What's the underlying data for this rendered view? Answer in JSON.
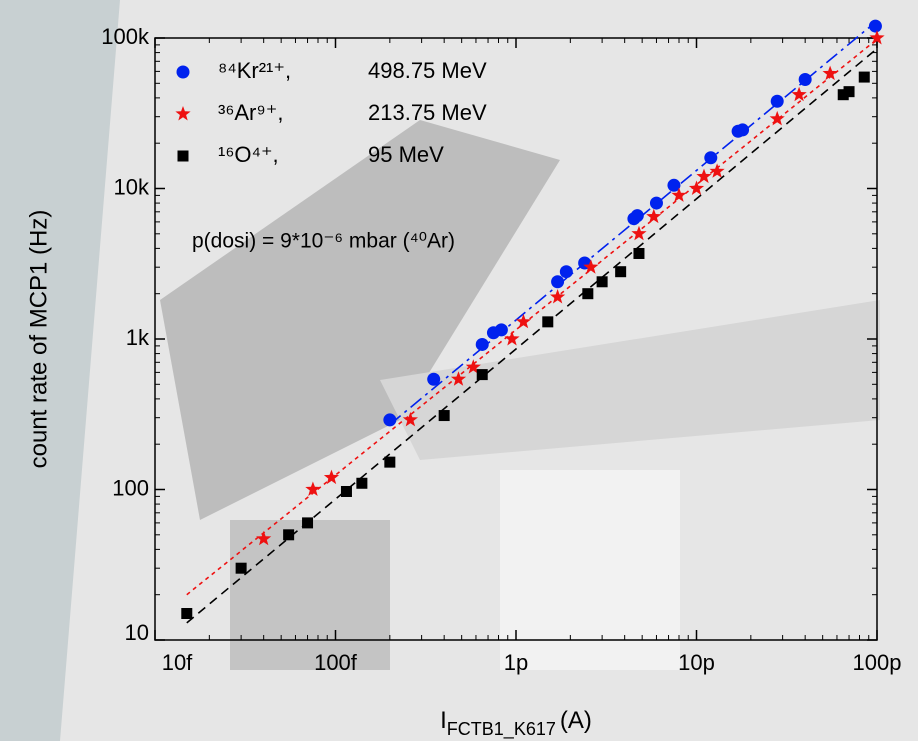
{
  "chart_data": {
    "type": "scatter",
    "xlabel": "I",
    "xlabel_sub": "FCTB1_K617",
    "xlabel_unit": "(A)",
    "ylabel": "count rate of  MCP1 (Hz)",
    "annotation": "p(dosi) = 9*10⁻⁶ mbar (⁴⁰Ar)",
    "xscale": "log",
    "yscale": "log",
    "xlim": [
      1e-14,
      1e-10
    ],
    "ylim": [
      10,
      100000
    ],
    "xticks": [
      {
        "value": 1e-14,
        "label": "10f"
      },
      {
        "value": 1e-13,
        "label": "100f"
      },
      {
        "value": 1e-12,
        "label": "1p"
      },
      {
        "value": 1e-11,
        "label": "10p"
      },
      {
        "value": 1e-10,
        "label": "100p"
      }
    ],
    "yticks": [
      10,
      100,
      {
        "value": 1000,
        "label": "1k"
      },
      {
        "value": 10000,
        "label": "10k"
      },
      {
        "value": 100000,
        "label": "100k"
      }
    ],
    "legend": "upper left",
    "series": [
      {
        "name": "⁸⁴Kr²¹⁺,",
        "energy": "498.75 MeV",
        "color": "#0022ee",
        "marker": "circle",
        "dash": "14 5 3 5",
        "x": [
          2e-13,
          3.5e-13,
          6.5e-13,
          7.5e-13,
          8.3e-13,
          1.7e-12,
          1.9e-12,
          2.4e-12,
          4.5e-12,
          4.7e-12,
          6e-12,
          7.5e-12,
          1.2e-11,
          1.7e-11,
          1.8e-11,
          2.8e-11,
          4e-11,
          9.8e-11
        ],
        "values": [
          290,
          540,
          920,
          1100,
          1150,
          2400,
          2800,
          3200,
          6300,
          6600,
          8000,
          10500,
          16000,
          24000,
          24500,
          38000,
          53000,
          120000
        ],
        "fit_x": [
          2e-13,
          1e-10
        ],
        "fit_y": [
          270,
          130000
        ]
      },
      {
        "name": "³⁶Ar⁹⁺,",
        "energy": "213.75 MeV",
        "color": "#ee1111",
        "marker": "star",
        "dash": "4 4",
        "x": [
          4e-14,
          7.5e-14,
          9.5e-14,
          2.6e-13,
          4.8e-13,
          5.8e-13,
          9.5e-13,
          1.1e-12,
          1.7e-12,
          2.6e-12,
          4.8e-12,
          5.8e-12,
          8e-12,
          1e-11,
          1.1e-11,
          1.3e-11,
          2.8e-11,
          3.7e-11,
          5.5e-11,
          1e-10
        ],
        "values": [
          47,
          100,
          120,
          290,
          540,
          650,
          1000,
          1300,
          1900,
          3000,
          5000,
          6500,
          9000,
          10000,
          12000,
          13000,
          29000,
          42000,
          58000,
          100000
        ],
        "fit_x": [
          1.5e-14,
          1e-10
        ],
        "fit_y": [
          20,
          98000
        ]
      },
      {
        "name": "¹⁶O⁴⁺,",
        "energy": "95 MeV",
        "color": "#000000",
        "marker": "square",
        "dash": "9 6",
        "x": [
          1.5e-14,
          3e-14,
          5.5e-14,
          7e-14,
          1.15e-13,
          1.4e-13,
          2e-13,
          4e-13,
          6.5e-13,
          1.5e-12,
          2.5e-12,
          3e-12,
          3.8e-12,
          4.8e-12,
          6.5e-11,
          7e-11,
          8.5e-11
        ],
        "values": [
          15,
          30,
          50,
          60,
          97,
          110,
          152,
          310,
          580,
          1300,
          2000,
          2400,
          2800,
          3700,
          42000,
          44000,
          55000
        ],
        "fit_x": [
          1.5e-14,
          1e-10
        ],
        "fit_y": [
          13,
          85000
        ]
      }
    ]
  }
}
